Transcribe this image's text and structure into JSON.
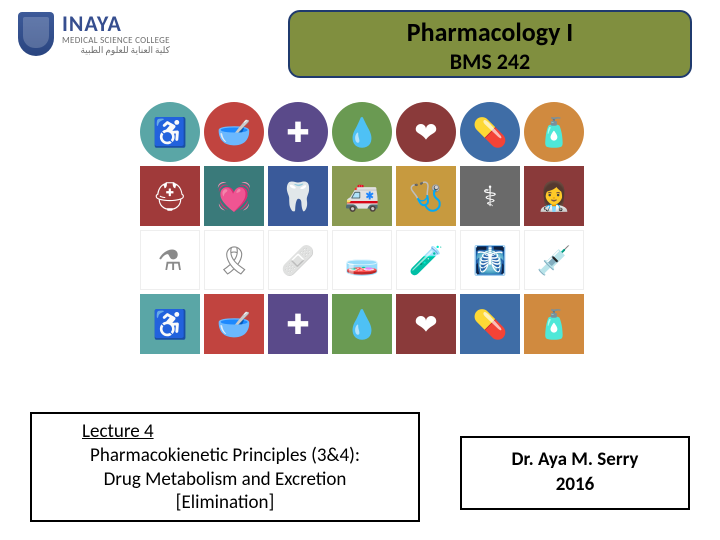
{
  "logo": {
    "name": "INAYA",
    "subtitle": "MEDICAL SCIENCE COLLEGE",
    "arabic": "كلية العناية للعلوم الطبية"
  },
  "course": {
    "title": "Pharmacology I",
    "code": "BMS 242"
  },
  "lecture": {
    "number": "Lecture 4",
    "topic1": "Pharmacokienetic Principles (3&4):",
    "topic2": "Drug Metabolism and Excretion",
    "topic3": "[Elimination]"
  },
  "author": {
    "name": "Dr. Aya M. Serry",
    "year": "2016"
  },
  "grid": {
    "colors": {
      "teal": "#5aa6a6",
      "red": "#c1443f",
      "purple": "#5a4a8a",
      "green": "#6a9a52",
      "maroon": "#8a3a3a",
      "blue": "#3f6da6",
      "orange": "#d08a3f",
      "dkred": "#a03a3a",
      "dkteal": "#3a7a7a",
      "navy": "#3a5a9a",
      "olive": "#8a9a52",
      "gold": "#c79a3f",
      "grey": "#6a6a6a",
      "white": "#ffffff"
    },
    "row1": [
      {
        "c": "teal",
        "g": "♿"
      },
      {
        "c": "red",
        "g": "🥣"
      },
      {
        "c": "purple",
        "g": "✚"
      },
      {
        "c": "green",
        "g": "💧"
      },
      {
        "c": "maroon",
        "g": "❤"
      },
      {
        "c": "blue",
        "g": "💊"
      },
      {
        "c": "orange",
        "g": "🧴"
      }
    ],
    "row2": [
      {
        "c": "dkred",
        "g": "⛑"
      },
      {
        "c": "dkteal",
        "g": "💓"
      },
      {
        "c": "navy",
        "g": "🦷"
      },
      {
        "c": "olive",
        "g": "🚑"
      },
      {
        "c": "gold",
        "g": "🩺"
      },
      {
        "c": "grey",
        "g": "⚕"
      },
      {
        "c": "maroon",
        "g": "👩‍⚕️"
      }
    ],
    "row3": [
      {
        "g": "⚗"
      },
      {
        "g": "🎗"
      },
      {
        "g": "🩹"
      },
      {
        "g": "🧫"
      },
      {
        "g": "🧪"
      },
      {
        "g": "🩻"
      },
      {
        "g": "💉"
      }
    ],
    "row4": [
      {
        "c": "teal",
        "g": "♿"
      },
      {
        "c": "red",
        "g": "🥣"
      },
      {
        "c": "purple",
        "g": "✚"
      },
      {
        "c": "green",
        "g": "💧"
      },
      {
        "c": "maroon",
        "g": "❤"
      },
      {
        "c": "blue",
        "g": "💊"
      },
      {
        "c": "orange",
        "g": "🧴"
      }
    ]
  }
}
